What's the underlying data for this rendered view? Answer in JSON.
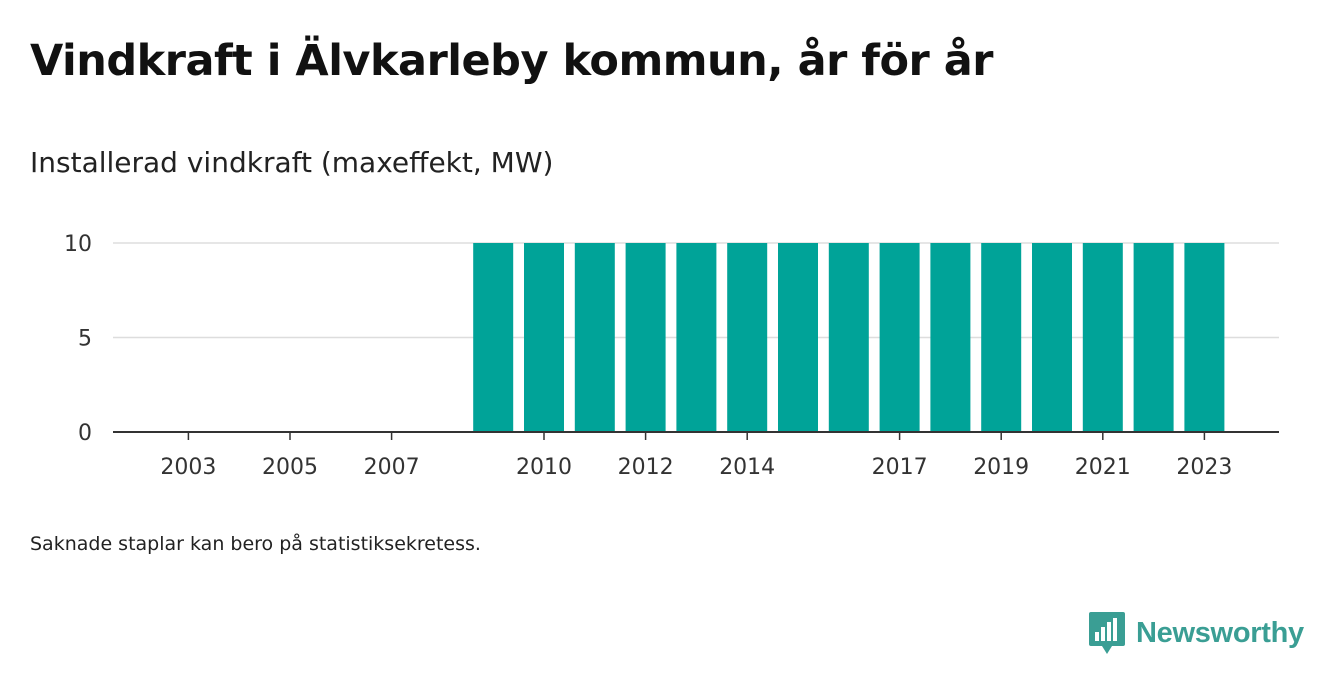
{
  "title": "Vindkraft i Älvkarleby kommun, år för år",
  "subtitle": "Installerad vindkraft (maxeffekt, MW)",
  "note": "Saknade staplar kan bero på statistiksekretess.",
  "brand": {
    "name": "Newsworthy"
  },
  "colors": {
    "bar": "#00a398",
    "grid": "#dddddd",
    "axis": "#333333",
    "brand": "#3a9e94"
  },
  "chart_data": {
    "type": "bar",
    "title": "Vindkraft i Älvkarleby kommun, år för år",
    "subtitle": "Installerad vindkraft (maxeffekt, MW)",
    "xlabel": "",
    "ylabel": "",
    "categories": [
      2002,
      2003,
      2004,
      2005,
      2006,
      2007,
      2008,
      2009,
      2010,
      2011,
      2012,
      2013,
      2014,
      2015,
      2016,
      2017,
      2018,
      2019,
      2020,
      2021,
      2022,
      2023
    ],
    "values": [
      null,
      null,
      null,
      null,
      null,
      null,
      null,
      10,
      10,
      10,
      10,
      10,
      10,
      10,
      10,
      10,
      10,
      10,
      10,
      10,
      10,
      10
    ],
    "x_tick_labels": [
      "2003",
      "2005",
      "2007",
      "2010",
      "2012",
      "2014",
      "2017",
      "2019",
      "2021",
      "2023"
    ],
    "y_ticks": [
      0,
      5,
      10
    ],
    "ylim": [
      0,
      10
    ],
    "grid": true
  }
}
